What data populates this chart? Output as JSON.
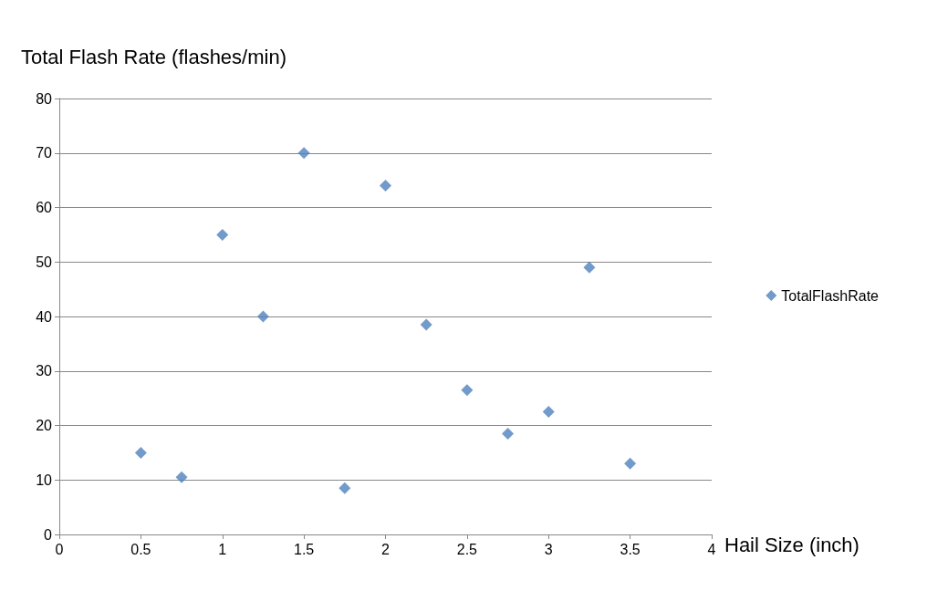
{
  "chart_data": {
    "type": "scatter",
    "ylabel": "Total Flash Rate (flashes/min)",
    "xlabel": "Hail Size (inch)",
    "x": [
      0.5,
      0.75,
      1,
      1.25,
      1.5,
      1.75,
      2,
      2.25,
      2.5,
      2.75,
      3,
      3.25,
      3.5
    ],
    "series": [
      {
        "name": "TotalFlashRate",
        "color": "#4f81bd",
        "values": [
          15,
          10.5,
          55,
          40,
          70,
          8.5,
          64,
          38.5,
          26.5,
          18.5,
          22.5,
          49,
          13
        ]
      }
    ],
    "xlim": [
      0,
      4
    ],
    "xticks": [
      0,
      0.5,
      1,
      1.5,
      2,
      2.5,
      3,
      3.5,
      4
    ],
    "ylim": [
      0,
      80
    ],
    "yticks": [
      0,
      10,
      20,
      30,
      40,
      50,
      60,
      70,
      80
    ],
    "grid": "y",
    "legend": "right",
    "marker": "diamond"
  }
}
